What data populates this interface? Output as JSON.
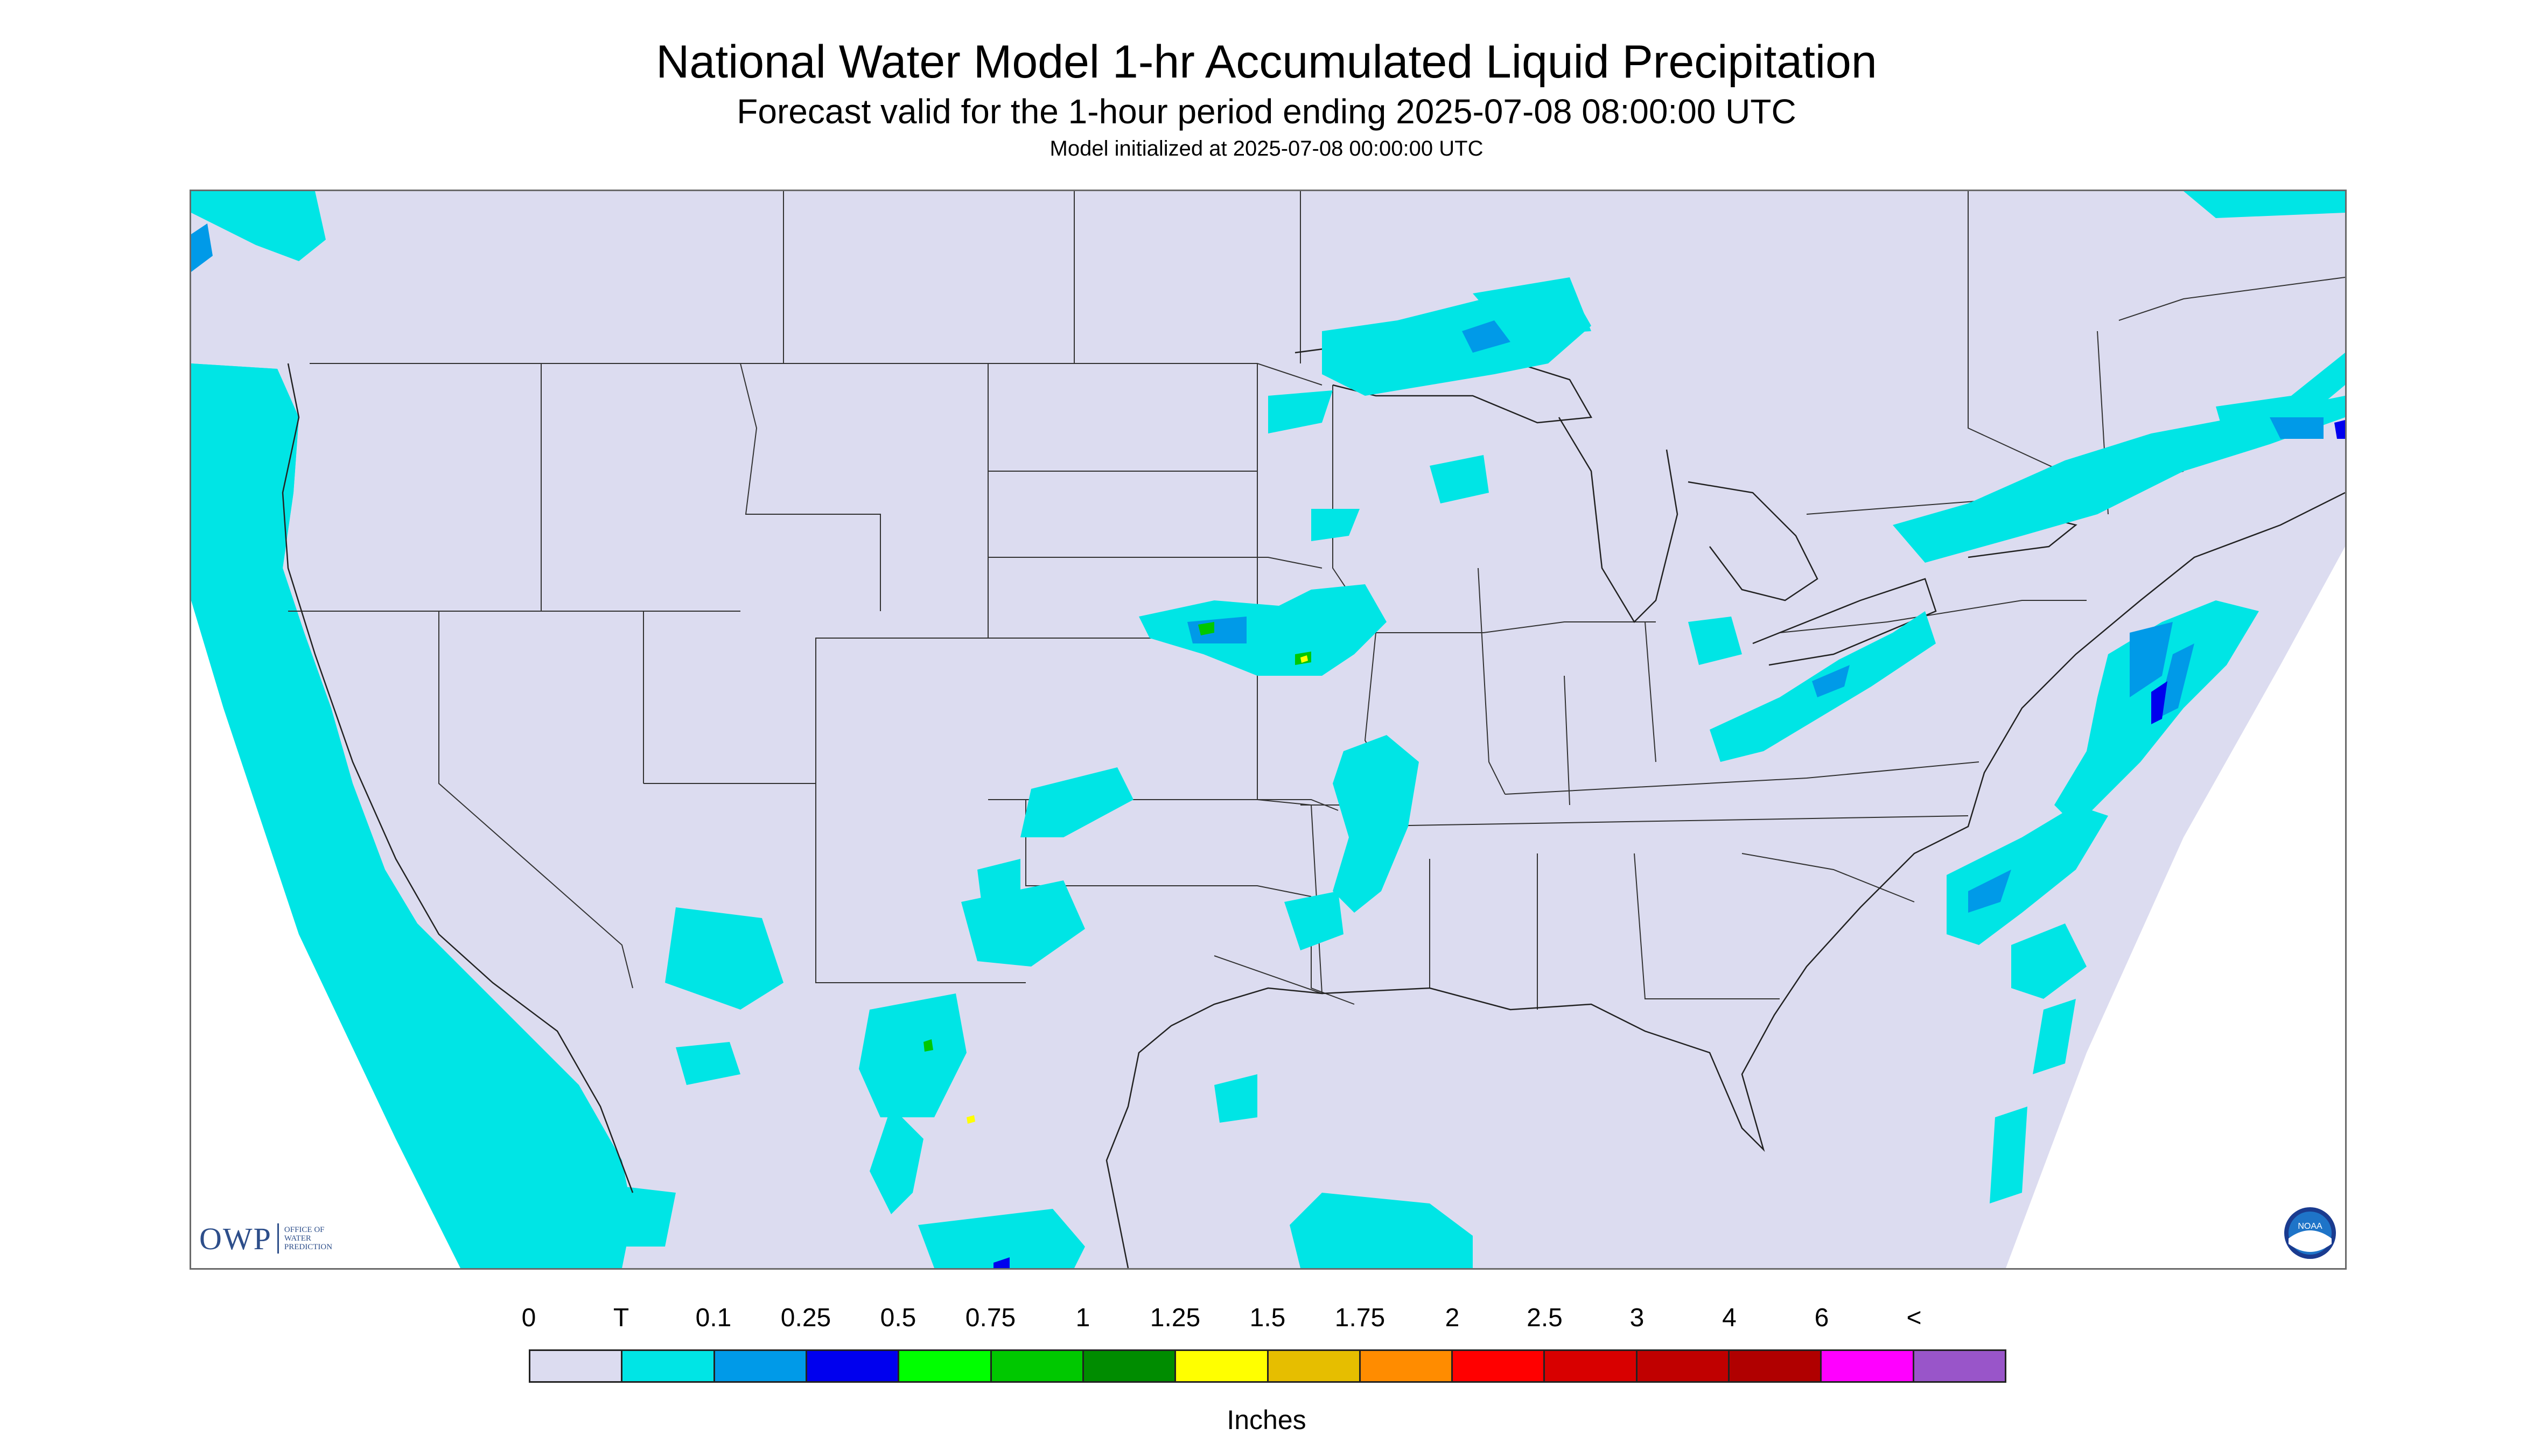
{
  "title": "National Water Model 1-hr Accumulated Liquid Precipitation",
  "subtitle": "Forecast valid for the 1-hour period ending 2025-07-08 08:00:00 UTC",
  "init_line": "Model initialized at 2025-07-08 00:00:00 UTC",
  "owp_logo": {
    "abbrev": "OWP",
    "line1": "OFFICE OF",
    "line2": "WATER",
    "line3": "PREDICTION"
  },
  "noaa_logo_text": "NOAA",
  "legend": {
    "labels": [
      "0",
      "T",
      "0.1",
      "0.25",
      "0.5",
      "0.75",
      "1",
      "1.25",
      "1.5",
      "1.75",
      "2",
      "2.5",
      "3",
      "4",
      "6",
      "<"
    ],
    "colors": [
      "#dcdcf0",
      "#00e5e5",
      "#009ae8",
      "#0000ee",
      "#00ff00",
      "#00c800",
      "#008c00",
      "#ffff00",
      "#e6be00",
      "#ff8c00",
      "#ff0000",
      "#d80000",
      "#c00000",
      "#b00000",
      "#ff00ff",
      "#9955c9"
    ],
    "units": "Inches"
  },
  "map": {
    "background_color": "#dcdcf0",
    "outside_domain_color": "#ffffff",
    "boundary_color": "#333333",
    "colors": {
      "light": "#00e5e5",
      "medium": "#009ae8",
      "heavy": "#0000ee",
      "peak_green": "#00c800",
      "peak_yellow": "#ffff00"
    }
  }
}
